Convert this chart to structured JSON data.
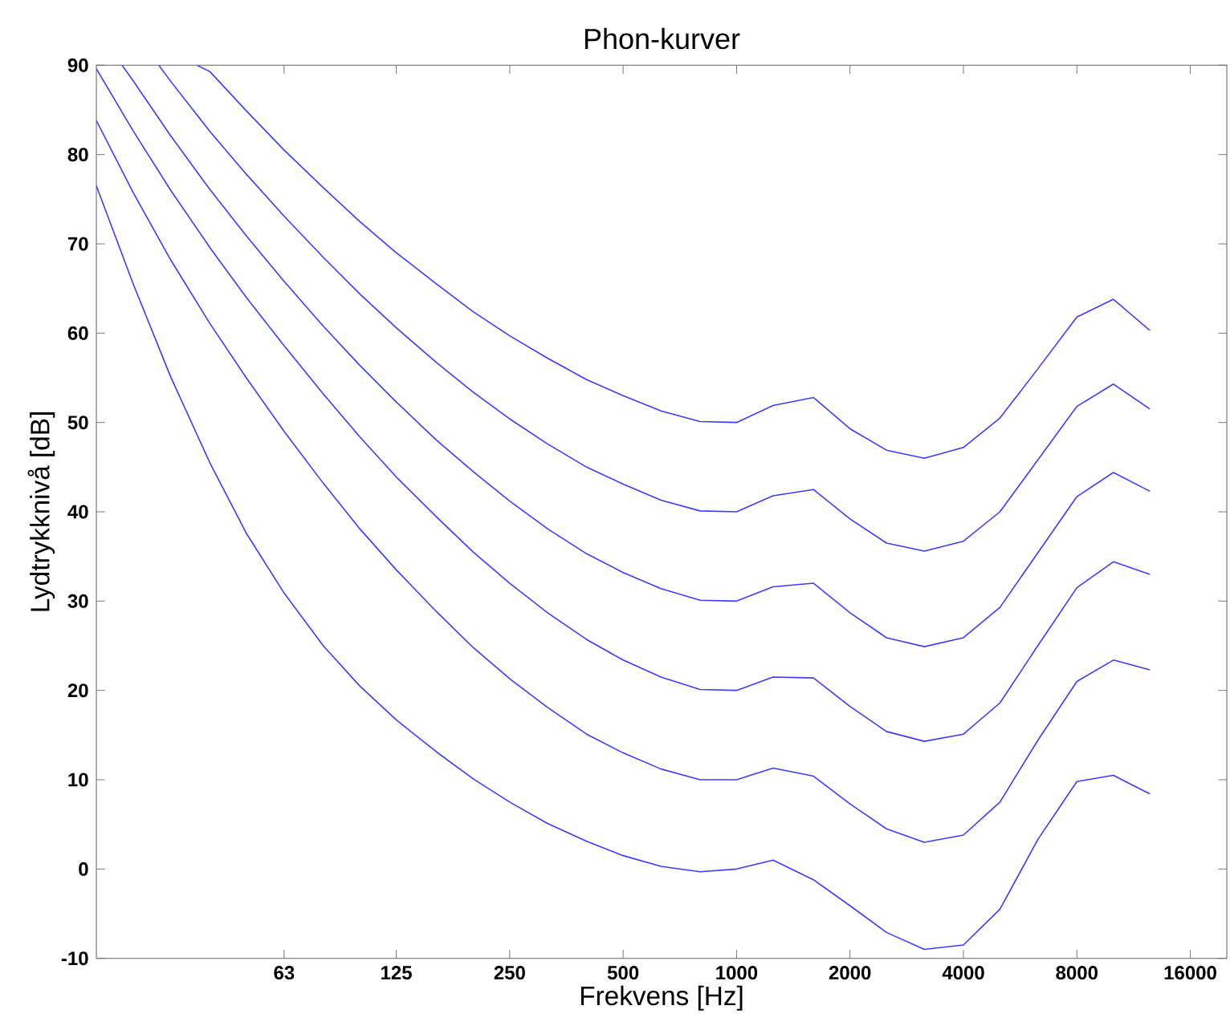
{
  "chart_data": {
    "type": "line",
    "title": "Phon-kurver",
    "xlabel": "Frekvens [Hz]",
    "ylabel": "Lydtrykknivå [dB]",
    "log": "x",
    "xlim": [
      20,
      20000
    ],
    "ylim": [
      -10,
      90
    ],
    "xticks": [
      63,
      125,
      250,
      500,
      1000,
      2000,
      4000,
      8000,
      16000
    ],
    "yticks": [
      -10,
      0,
      10,
      20,
      30,
      40,
      50,
      60,
      70,
      80,
      90
    ],
    "marker": "none",
    "line_style": "solid",
    "series": [
      {
        "color": "#3b3bff",
        "x": [
          20,
          25,
          31.5,
          40,
          50,
          63,
          80,
          100,
          125,
          160,
          200,
          250,
          315,
          400,
          500,
          630,
          800,
          1000,
          1250,
          1600,
          2000,
          2500,
          3150,
          4000,
          5000,
          6300,
          8000,
          10000,
          12500
        ],
        "values": [
          76.5,
          65.6,
          55.1,
          45.5,
          37.6,
          30.9,
          25.0,
          20.5,
          16.7,
          13.1,
          10.1,
          7.5,
          5.1,
          3.1,
          1.5,
          0.3,
          -0.3,
          0.0,
          1.0,
          -1.2,
          -4.1,
          -7.1,
          -9.0,
          -8.5,
          -4.5,
          3.3,
          9.8,
          10.5,
          8.4
        ]
      },
      {
        "color": "#3b3bff",
        "x": [
          20,
          25,
          31.5,
          40,
          50,
          63,
          80,
          100,
          125,
          160,
          200,
          250,
          315,
          400,
          500,
          630,
          800,
          1000,
          1250,
          1600,
          2000,
          2500,
          3150,
          4000,
          5000,
          6300,
          8000,
          10000,
          12500
        ],
        "values": [
          83.8,
          75.8,
          68.2,
          61.1,
          55.0,
          49.0,
          43.2,
          38.1,
          33.5,
          28.8,
          24.8,
          21.3,
          18.1,
          15.1,
          13.0,
          11.2,
          10.0,
          10.0,
          11.3,
          10.4,
          7.3,
          4.5,
          3.0,
          3.8,
          7.5,
          14.4,
          21.0,
          23.4,
          22.3
        ]
      },
      {
        "color": "#3b3bff",
        "x": [
          20,
          25,
          31.5,
          40,
          50,
          63,
          80,
          100,
          125,
          160,
          200,
          250,
          315,
          400,
          500,
          630,
          800,
          1000,
          1250,
          1600,
          2000,
          2500,
          3150,
          4000,
          5000,
          6300,
          8000,
          10000,
          12500
        ],
        "values": [
          89.6,
          82.7,
          76.0,
          69.6,
          64.0,
          58.6,
          53.2,
          48.4,
          43.9,
          39.4,
          35.5,
          32.0,
          28.7,
          25.7,
          23.4,
          21.5,
          20.1,
          20.0,
          21.5,
          21.4,
          18.2,
          15.4,
          14.3,
          15.1,
          18.6,
          25.0,
          31.5,
          34.4,
          33.0
        ]
      },
      {
        "color": "#3b3bff",
        "x": [
          23.4,
          25,
          31.5,
          40,
          50,
          63,
          80,
          100,
          125,
          160,
          200,
          250,
          315,
          400,
          500,
          630,
          800,
          1000,
          1250,
          1600,
          2000,
          2500,
          3150,
          4000,
          5000,
          6300,
          8000,
          10000,
          12500
        ],
        "values": [
          90,
          88.3,
          82.1,
          76.1,
          70.9,
          65.8,
          60.8,
          56.4,
          52.3,
          48.0,
          44.5,
          41.2,
          38.1,
          35.3,
          33.2,
          31.4,
          30.1,
          30.0,
          31.6,
          32.0,
          28.7,
          25.9,
          24.9,
          25.9,
          29.3,
          35.4,
          41.7,
          44.4,
          42.3
        ]
      },
      {
        "color": "#3b3bff",
        "x": [
          29.3,
          31.5,
          40,
          50,
          63,
          80,
          100,
          125,
          160,
          200,
          250,
          315,
          400,
          500,
          630,
          800,
          1000,
          1250,
          1600,
          2000,
          2500,
          3150,
          4000,
          5000,
          6300,
          8000,
          10000,
          12500
        ],
        "values": [
          90,
          88.2,
          82.6,
          77.8,
          73.1,
          68.5,
          64.4,
          60.6,
          56.7,
          53.4,
          50.4,
          47.6,
          45.0,
          43.1,
          41.3,
          40.1,
          40.0,
          41.8,
          42.5,
          39.2,
          36.5,
          35.6,
          36.7,
          40.0,
          45.8,
          51.8,
          54.3,
          51.5
        ]
      },
      {
        "color": "#3b3bff",
        "x": [
          37,
          40,
          50,
          63,
          80,
          100,
          125,
          160,
          200,
          250,
          315,
          400,
          500,
          630,
          800,
          1000,
          1250,
          1600,
          2000,
          2500,
          3150,
          4000,
          5000,
          6300,
          8000,
          10000,
          12500
        ],
        "values": [
          90,
          89.3,
          84.9,
          80.5,
          76.3,
          72.5,
          69.0,
          65.5,
          62.4,
          59.7,
          57.2,
          54.8,
          53.0,
          51.3,
          50.1,
          50.0,
          51.9,
          52.8,
          49.3,
          46.9,
          46.0,
          47.2,
          50.5,
          56.0,
          61.8,
          63.8,
          60.3
        ]
      }
    ]
  }
}
